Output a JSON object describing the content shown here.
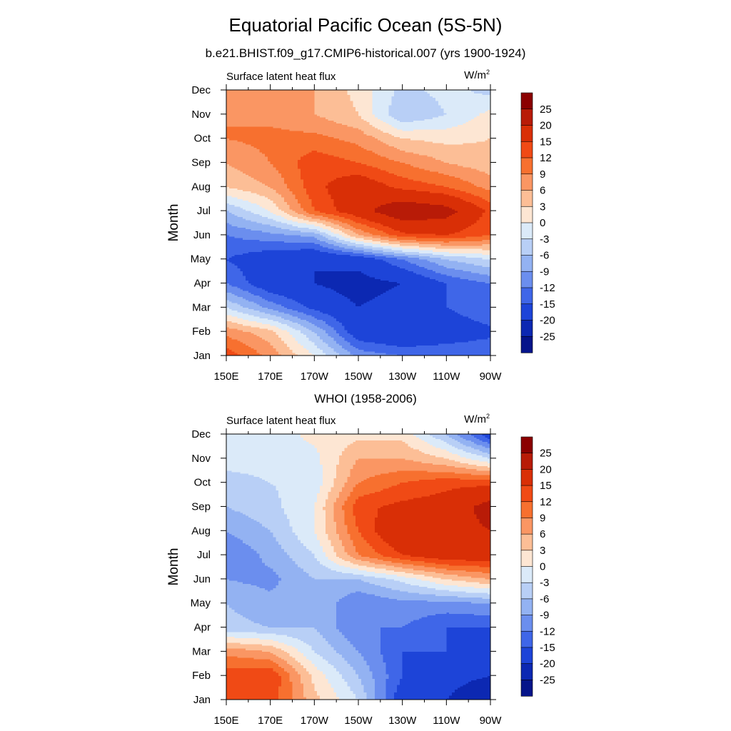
{
  "header": {
    "title": "Equatorial Pacific Ocean (5S-5N)",
    "subtitle": "b.e21.BHIST.f09_g17.CMIP6-historical.007 (yrs 1900-1924)"
  },
  "panels": [
    {
      "title": "",
      "left_string": "Surface latent heat flux",
      "right_string_base": "W/m",
      "right_string_sup": "2"
    },
    {
      "title": "WHOI (1958-2006)",
      "left_string": "Surface latent heat flux",
      "right_string_base": "W/m",
      "right_string_sup": "2"
    }
  ],
  "colorbar": {
    "labels": [
      "25",
      "20",
      "15",
      "12",
      "9",
      "6",
      "3",
      "0",
      "-3",
      "-6",
      "-9",
      "-12",
      "-15",
      "-20",
      "-25"
    ],
    "colors": [
      "#8b0000",
      "#b81b07",
      "#d92f06",
      "#f04a15",
      "#f7702f",
      "#fa9663",
      "#fcbe96",
      "#fde6d3",
      "#dbeaf9",
      "#b8cff6",
      "#93b2f2",
      "#6b8eee",
      "#3f66e8",
      "#1d44d8",
      "#0c28b2",
      "#05148a"
    ]
  },
  "chart_data": [
    {
      "type": "heatmap",
      "title": "Equatorial Pacific Ocean (5S-5N)",
      "subtitle": "b.e21.BHIST.f09_g17.CMIP6-historical.007 (yrs 1900-1924)",
      "variable": "Surface latent heat flux",
      "units": "W/m2",
      "xlabel": "",
      "ylabel": "Month",
      "x": [
        "150E",
        "170E",
        "170W",
        "150W",
        "130W",
        "110W",
        "90W"
      ],
      "y": [
        "Jan",
        "Feb",
        "Mar",
        "Apr",
        "May",
        "Jun",
        "Jul",
        "Aug",
        "Sep",
        "Oct",
        "Nov",
        "Dec"
      ],
      "levels": [
        -25,
        -20,
        -15,
        -12,
        -9,
        -6,
        -3,
        0,
        3,
        6,
        9,
        12,
        15,
        20,
        25
      ],
      "z": [
        [
          14,
          8,
          0,
          -10,
          -12,
          -12,
          -12
        ],
        [
          8,
          4,
          -6,
          -18,
          -20,
          -18,
          -16
        ],
        [
          -3,
          -10,
          -16,
          -20,
          -18,
          -15,
          -12
        ],
        [
          -12,
          -18,
          -20,
          -22,
          -20,
          -15,
          -12
        ],
        [
          -15,
          -18,
          -20,
          -18,
          -12,
          -6,
          -3
        ],
        [
          -12,
          -10,
          -8,
          6,
          14,
          15,
          12
        ],
        [
          -6,
          0,
          12,
          18,
          24,
          22,
          14
        ],
        [
          3,
          6,
          14,
          18,
          14,
          12,
          8
        ],
        [
          6,
          9,
          14,
          12,
          9,
          6,
          4
        ],
        [
          9,
          10,
          10,
          8,
          3,
          2,
          3
        ],
        [
          9,
          8,
          6,
          3,
          -6,
          -3,
          1
        ],
        [
          8,
          6,
          6,
          2,
          -4,
          -2,
          -4
        ]
      ]
    },
    {
      "type": "heatmap",
      "title": "WHOI (1958-2006)",
      "variable": "Surface latent heat flux",
      "units": "W/m2",
      "xlabel": "",
      "ylabel": "Month",
      "x": [
        "150E",
        "170E",
        "170W",
        "150W",
        "130W",
        "110W",
        "90W"
      ],
      "y": [
        "Jan",
        "Feb",
        "Mar",
        "Apr",
        "May",
        "Jun",
        "Jul",
        "Aug",
        "Sep",
        "Oct",
        "Nov",
        "Dec"
      ],
      "levels": [
        -25,
        -20,
        -15,
        -12,
        -9,
        -6,
        -3,
        0,
        3,
        6,
        9,
        12,
        15,
        20,
        25
      ],
      "z": [
        [
          12,
          14,
          4,
          -3,
          -18,
          -20,
          -25
        ],
        [
          14,
          15,
          2,
          -6,
          -15,
          -18,
          -20
        ],
        [
          8,
          6,
          -3,
          -9,
          -15,
          -15,
          -18
        ],
        [
          -5,
          -6,
          -6,
          -12,
          -12,
          -15,
          -15
        ],
        [
          -6,
          -8,
          -6,
          -12,
          -10,
          -10,
          -9
        ],
        [
          -9,
          -10,
          -6,
          -6,
          -2,
          3,
          6
        ],
        [
          -12,
          -8,
          -3,
          9,
          15,
          18,
          18
        ],
        [
          -9,
          -6,
          0,
          12,
          20,
          18,
          20
        ],
        [
          -6,
          -4,
          0,
          14,
          16,
          17,
          22
        ],
        [
          -4,
          -3,
          -2,
          9,
          12,
          14,
          14
        ],
        [
          -2,
          -2,
          -1,
          6,
          6,
          3,
          -3
        ],
        [
          -3,
          -2,
          1,
          2,
          2,
          -6,
          -18
        ]
      ]
    }
  ]
}
